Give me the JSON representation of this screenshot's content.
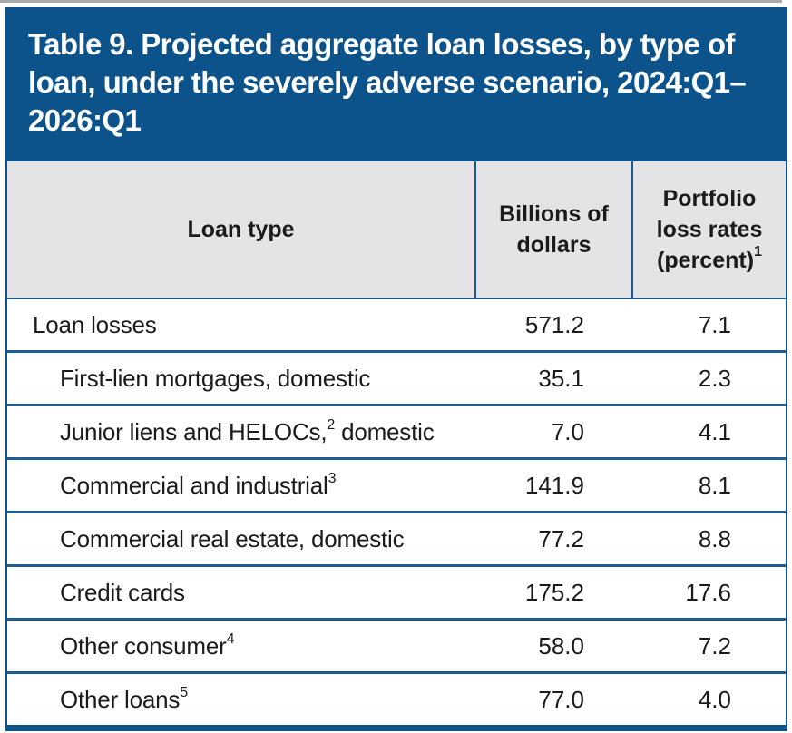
{
  "title": "Table 9. Projected aggregate loan losses, by type of loan, under the severely adverse scenario, 2024:Q1–2026:Q1",
  "colors": {
    "banner_blue": "#0d538b",
    "rule_blue": "#1e5c96",
    "header_gray": "#e4e4e7",
    "title_text": "#ffffff",
    "body_text": "#1b1b1d"
  },
  "table": {
    "header": {
      "loan_type": "Loan type",
      "billions": "Billions of dollars",
      "portfolio_pre": "Portfolio loss rates (percent)",
      "portfolio_sup": "1"
    },
    "rows": [
      {
        "label": "Loan losses",
        "billions": "571.2",
        "rate": "7.1"
      },
      {
        "label": "First-lien mortgages, domestic",
        "billions": "35.1",
        "rate": "2.3"
      },
      {
        "label": "Junior liens and HELOCs,",
        "sup": "2",
        "label_post": " domestic",
        "billions": "7.0",
        "rate": "4.1"
      },
      {
        "label": "Commercial and industrial",
        "sup": "3",
        "billions": "141.9",
        "rate": "8.1"
      },
      {
        "label": "Commercial real estate, domestic",
        "billions": "77.2",
        "rate": "8.8"
      },
      {
        "label": "Credit cards",
        "billions": "175.2",
        "rate": "17.6"
      },
      {
        "label": "Other consumer",
        "sup": "4",
        "billions": "58.0",
        "rate": "7.2"
      },
      {
        "label": "Other loans",
        "sup": "5",
        "billions": "77.0",
        "rate": "4.0"
      }
    ]
  }
}
